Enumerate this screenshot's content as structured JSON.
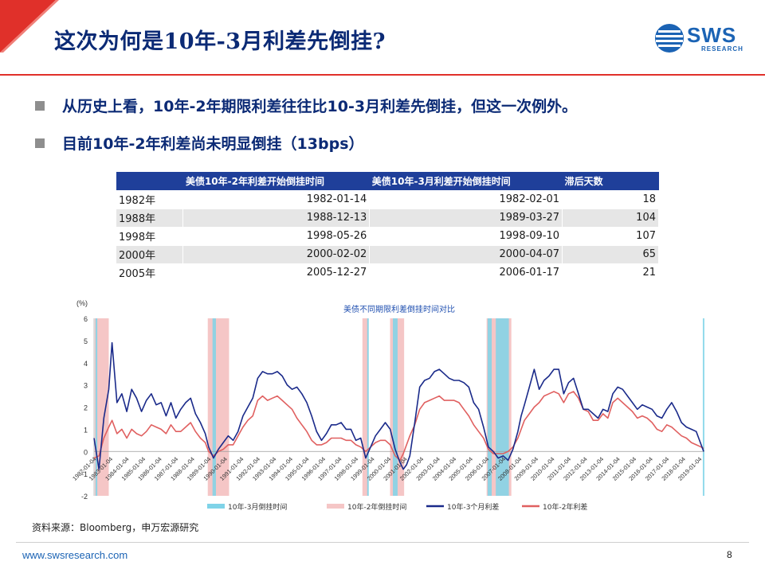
{
  "header": {
    "title": "这次为何是10年-3月利差先倒挂?",
    "logo_text": "SWS",
    "logo_sub": "RESEARCH"
  },
  "bullets": [
    "从历史上看，10年-2年期限利差往往比10-3月利差先倒挂，但这一次例外。",
    "目前10年-2年利差尚未明显倒挂（13bps）"
  ],
  "table": {
    "headers": [
      "",
      "美债10年-2年利差开始倒挂时间",
      "美债10年-3月利差开始倒挂时间",
      "滞后天数"
    ],
    "rows": [
      [
        "1982年",
        "1982-01-14",
        "1982-02-01",
        "18"
      ],
      [
        "1988年",
        "1988-12-13",
        "1989-03-27",
        "104"
      ],
      [
        "1998年",
        "1998-05-26",
        "1998-09-10",
        "107"
      ],
      [
        "2000年",
        "2000-02-02",
        "2000-04-07",
        "65"
      ],
      [
        "2005年",
        "2005-12-27",
        "2006-01-17",
        "21"
      ]
    ]
  },
  "chart_data": {
    "type": "line",
    "title": "美债不同期限利差倒挂时间对比",
    "ylabel": "(%)",
    "ylim": [
      -2,
      6
    ],
    "yticks": [
      -2,
      -1,
      0,
      1,
      2,
      3,
      4,
      5,
      6
    ],
    "xlim": [
      1982.0,
      2019.3
    ],
    "x_tick_labels": [
      "1982-01-04",
      "1983-01-04",
      "1984-01-04",
      "1985-01-04",
      "1986-01-04",
      "1987-01-04",
      "1988-01-04",
      "1989-01-04",
      "1990-01-04",
      "1991-01-04",
      "1992-01-04",
      "1993-01-04",
      "1994-01-04",
      "1995-01-04",
      "1996-01-04",
      "1997-01-04",
      "1998-01-04",
      "1999-01-04",
      "2000-01-04",
      "2001-01-04",
      "2002-01-04",
      "2003-01-04",
      "2004-01-04",
      "2005-01-04",
      "2006-01-04",
      "2007-01-04",
      "2008-01-04",
      "2009-01-04",
      "2010-01-04",
      "2011-01-04",
      "2012-01-04",
      "2013-01-04",
      "2014-01-04",
      "2015-01-04",
      "2016-01-04",
      "2017-01-04",
      "2018-01-04",
      "2019-01-04"
    ],
    "inversion_10y3m": [
      [
        1982.09,
        1982.2
      ],
      [
        1989.24,
        1989.45
      ],
      [
        1998.69,
        1998.79
      ],
      [
        2000.26,
        2000.55
      ],
      [
        2006.05,
        2006.3
      ],
      [
        2006.55,
        2007.35
      ],
      [
        2019.2,
        2019.27
      ]
    ],
    "inversion_10y2y": [
      [
        1982.04,
        1982.9
      ],
      [
        1988.95,
        1990.25
      ],
      [
        1998.4,
        1998.75
      ],
      [
        2000.09,
        2000.95
      ],
      [
        2005.99,
        2007.5
      ]
    ],
    "series": [
      {
        "name": "10年-3个月利差",
        "color": "#1a2a8a",
        "x": [
          1982.0,
          1982.3,
          1982.6,
          1982.9,
          1983.1,
          1983.4,
          1983.7,
          1984.0,
          1984.3,
          1984.6,
          1984.9,
          1985.2,
          1985.5,
          1985.8,
          1986.1,
          1986.4,
          1986.7,
          1987.0,
          1987.3,
          1987.6,
          1987.9,
          1988.2,
          1988.5,
          1988.8,
          1989.0,
          1989.3,
          1989.6,
          1989.9,
          1990.2,
          1990.5,
          1990.8,
          1991.1,
          1991.4,
          1991.7,
          1992.0,
          1992.3,
          1992.6,
          1992.9,
          1993.2,
          1993.5,
          1993.8,
          1994.1,
          1994.4,
          1994.7,
          1995.0,
          1995.3,
          1995.6,
          1995.9,
          1996.2,
          1996.5,
          1996.8,
          1997.1,
          1997.4,
          1997.7,
          1998.0,
          1998.3,
          1998.6,
          1998.9,
          1999.2,
          1999.5,
          1999.8,
          2000.1,
          2000.4,
          2000.7,
          2000.9,
          2001.1,
          2001.3,
          2001.6,
          2001.9,
          2002.2,
          2002.5,
          2002.8,
          2003.1,
          2003.4,
          2003.7,
          2004.0,
          2004.3,
          2004.6,
          2004.9,
          2005.2,
          2005.5,
          2005.8,
          2006.1,
          2006.4,
          2006.7,
          2007.0,
          2007.3,
          2007.6,
          2007.9,
          2008.1,
          2008.3,
          2008.6,
          2008.9,
          2009.2,
          2009.5,
          2009.8,
          2010.1,
          2010.4,
          2010.7,
          2011.0,
          2011.3,
          2011.6,
          2011.9,
          2012.2,
          2012.5,
          2012.8,
          2013.1,
          2013.4,
          2013.7,
          2014.0,
          2014.3,
          2014.6,
          2014.9,
          2015.2,
          2015.5,
          2015.8,
          2016.1,
          2016.4,
          2016.7,
          2017.0,
          2017.3,
          2017.6,
          2017.9,
          2018.2,
          2018.5,
          2018.8,
          2019.1,
          2019.25
        ],
        "y": [
          0.6,
          -0.8,
          1.5,
          2.8,
          4.9,
          2.2,
          2.6,
          1.8,
          2.8,
          2.4,
          1.8,
          2.3,
          2.6,
          2.1,
          2.2,
          1.6,
          2.2,
          1.5,
          1.9,
          2.2,
          2.4,
          1.7,
          1.3,
          0.8,
          0.2,
          -0.3,
          0.1,
          0.4,
          0.7,
          0.5,
          0.9,
          1.6,
          2.0,
          2.4,
          3.3,
          3.6,
          3.5,
          3.5,
          3.6,
          3.4,
          3.0,
          2.8,
          2.9,
          2.6,
          2.2,
          1.6,
          0.9,
          0.5,
          0.8,
          1.2,
          1.2,
          1.3,
          1.0,
          1.0,
          0.5,
          0.6,
          -0.3,
          0.2,
          0.7,
          1.0,
          1.3,
          1.0,
          0.1,
          -0.5,
          -0.8,
          -0.6,
          -0.2,
          1.3,
          2.9,
          3.2,
          3.3,
          3.6,
          3.7,
          3.5,
          3.3,
          3.2,
          3.2,
          3.1,
          2.9,
          2.2,
          1.9,
          1.1,
          0.2,
          0.0,
          -0.3,
          -0.2,
          -0.4,
          0.1,
          0.9,
          1.6,
          2.1,
          2.9,
          3.7,
          2.8,
          3.2,
          3.4,
          3.7,
          3.7,
          2.6,
          3.1,
          3.3,
          2.6,
          1.9,
          1.9,
          1.7,
          1.5,
          1.9,
          1.8,
          2.6,
          2.9,
          2.8,
          2.5,
          2.2,
          1.9,
          2.1,
          2.0,
          1.9,
          1.6,
          1.5,
          1.9,
          2.2,
          1.8,
          1.3,
          1.1,
          1.0,
          0.9,
          0.3,
          0.0
        ]
      },
      {
        "name": "10年-2年利差",
        "color": "#e06060",
        "x": [
          1982.0,
          1982.3,
          1982.6,
          1982.9,
          1983.1,
          1983.4,
          1983.7,
          1984.0,
          1984.3,
          1984.6,
          1984.9,
          1985.2,
          1985.5,
          1985.8,
          1986.1,
          1986.4,
          1986.7,
          1987.0,
          1987.3,
          1987.6,
          1987.9,
          1988.2,
          1988.5,
          1988.8,
          1989.0,
          1989.3,
          1989.6,
          1989.9,
          1990.2,
          1990.5,
          1990.8,
          1991.1,
          1991.4,
          1991.7,
          1992.0,
          1992.3,
          1992.6,
          1992.9,
          1993.2,
          1993.5,
          1993.8,
          1994.1,
          1994.4,
          1994.7,
          1995.0,
          1995.3,
          1995.6,
          1995.9,
          1996.2,
          1996.5,
          1996.8,
          1997.1,
          1997.4,
          1997.7,
          1998.0,
          1998.3,
          1998.6,
          1998.9,
          1999.2,
          1999.5,
          1999.8,
          2000.1,
          2000.4,
          2000.7,
          2000.9,
          2001.1,
          2001.3,
          2001.6,
          2001.9,
          2002.2,
          2002.5,
          2002.8,
          2003.1,
          2003.4,
          2003.7,
          2004.0,
          2004.3,
          2004.6,
          2004.9,
          2005.2,
          2005.5,
          2005.8,
          2006.1,
          2006.4,
          2006.7,
          2007.0,
          2007.3,
          2007.6,
          2007.9,
          2008.1,
          2008.3,
          2008.6,
          2008.9,
          2009.2,
          2009.5,
          2009.8,
          2010.1,
          2010.4,
          2010.7,
          2011.0,
          2011.3,
          2011.6,
          2011.9,
          2012.2,
          2012.5,
          2012.8,
          2013.1,
          2013.4,
          2013.7,
          2014.0,
          2014.3,
          2014.6,
          2014.9,
          2015.2,
          2015.5,
          2015.8,
          2016.1,
          2016.4,
          2016.7,
          2017.0,
          2017.3,
          2017.6,
          2017.9,
          2018.2,
          2018.5,
          2018.8,
          2019.1,
          2019.25
        ],
        "y": [
          -0.3,
          -0.2,
          0.6,
          1.1,
          1.4,
          0.8,
          1.0,
          0.6,
          1.0,
          0.8,
          0.7,
          0.9,
          1.2,
          1.1,
          1.0,
          0.8,
          1.2,
          0.9,
          0.9,
          1.1,
          1.3,
          0.9,
          0.6,
          0.4,
          0.0,
          -0.2,
          0.0,
          0.1,
          0.3,
          0.3,
          0.7,
          1.1,
          1.4,
          1.6,
          2.3,
          2.5,
          2.3,
          2.4,
          2.5,
          2.3,
          2.1,
          1.9,
          1.5,
          1.2,
          0.9,
          0.5,
          0.3,
          0.3,
          0.4,
          0.6,
          0.6,
          0.6,
          0.5,
          0.5,
          0.3,
          0.2,
          0.0,
          0.2,
          0.4,
          0.5,
          0.5,
          0.3,
          -0.2,
          -0.4,
          -0.1,
          0.3,
          0.7,
          1.2,
          1.9,
          2.2,
          2.3,
          2.4,
          2.5,
          2.3,
          2.3,
          2.3,
          2.2,
          1.9,
          1.6,
          1.2,
          0.9,
          0.6,
          0.1,
          -0.1,
          -0.1,
          -0.1,
          0.0,
          0.2,
          0.6,
          1.0,
          1.4,
          1.7,
          2.0,
          2.2,
          2.5,
          2.6,
          2.7,
          2.6,
          2.2,
          2.6,
          2.7,
          2.4,
          1.9,
          1.8,
          1.4,
          1.4,
          1.7,
          1.5,
          2.2,
          2.4,
          2.2,
          2.0,
          1.8,
          1.5,
          1.6,
          1.5,
          1.3,
          1.0,
          0.9,
          1.2,
          1.1,
          0.9,
          0.7,
          0.6,
          0.4,
          0.3,
          0.2,
          0.13
        ]
      }
    ],
    "legend": [
      {
        "label": "10年-3月倒挂时间",
        "kind": "band",
        "color": "#7fd3e8"
      },
      {
        "label": "10年-2年倒挂时间",
        "kind": "band",
        "color": "#f5c6c6"
      },
      {
        "label": "10年-3个月利差",
        "kind": "line",
        "color": "#1a2a8a"
      },
      {
        "label": "10年-2年利差",
        "kind": "line",
        "color": "#e06060"
      }
    ],
    "legend_position": "bottom"
  },
  "source": "资料来源：Bloomberg，申万宏源研究",
  "footer": {
    "url": "www.swsresearch.com",
    "page": "8"
  },
  "colors": {
    "title": "#0b2a75",
    "table_header": "#1f3f9a",
    "accent_red": "#e0302a"
  }
}
